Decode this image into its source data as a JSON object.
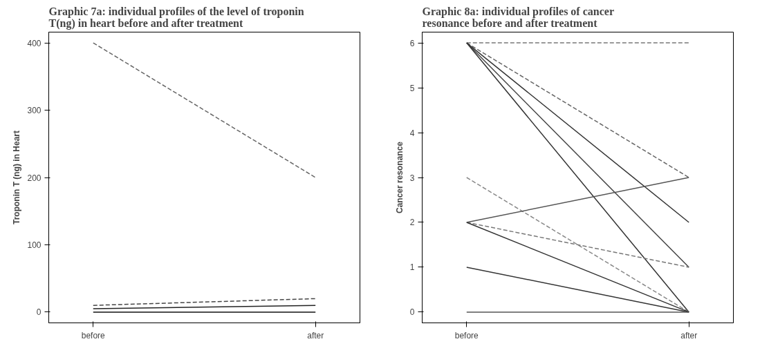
{
  "chart_data": [
    {
      "type": "line",
      "title": "Graphic 7a: individual profiles of the level of troponin\nT(ng) in heart before and after treatment",
      "ylabel": "Troponin T (ng) in Heart",
      "categories": [
        "before",
        "after"
      ],
      "ylim": [
        -16,
        416
      ],
      "yticks": [
        0,
        100,
        200,
        300,
        400
      ],
      "grid": false,
      "series": [
        {
          "color": "#666666",
          "line_style": "dashed",
          "values": [
            400,
            200
          ]
        },
        {
          "color": "#444444",
          "line_style": "dashed",
          "values": [
            10,
            20
          ]
        },
        {
          "color": "#222222",
          "line_style": "solid",
          "values": [
            5,
            10
          ]
        },
        {
          "color": "#111111",
          "line_style": "solid",
          "values": [
            0,
            0
          ]
        }
      ]
    },
    {
      "type": "line",
      "title": "Graphic 8a: individual profiles of cancer\nresonance before and after treatment",
      "ylabel": "Cancer resonance",
      "categories": [
        "before",
        "after"
      ],
      "ylim": [
        -0.24,
        6.24
      ],
      "yticks": [
        0,
        1,
        2,
        3,
        4,
        5,
        6
      ],
      "grid": false,
      "series": [
        {
          "color": "#777777",
          "line_style": "dashed",
          "values": [
            6,
            6
          ]
        },
        {
          "color": "#666666",
          "line_style": "dashed",
          "values": [
            6,
            3
          ]
        },
        {
          "color": "#333333",
          "line_style": "solid",
          "values": [
            6,
            2
          ]
        },
        {
          "color": "#444444",
          "line_style": "solid",
          "values": [
            6,
            1
          ]
        },
        {
          "color": "#333333",
          "line_style": "solid",
          "values": [
            6,
            0
          ]
        },
        {
          "color": "#888888",
          "line_style": "dashed",
          "values": [
            3,
            0
          ]
        },
        {
          "color": "#555555",
          "line_style": "solid",
          "values": [
            2,
            3
          ]
        },
        {
          "color": "#777777",
          "line_style": "dashed",
          "values": [
            2,
            1
          ]
        },
        {
          "color": "#333333",
          "line_style": "solid",
          "values": [
            2,
            0
          ]
        },
        {
          "color": "#333333",
          "line_style": "solid",
          "values": [
            1,
            0
          ]
        },
        {
          "color": "#555555",
          "line_style": "solid",
          "values": [
            0,
            0
          ]
        }
      ]
    }
  ]
}
